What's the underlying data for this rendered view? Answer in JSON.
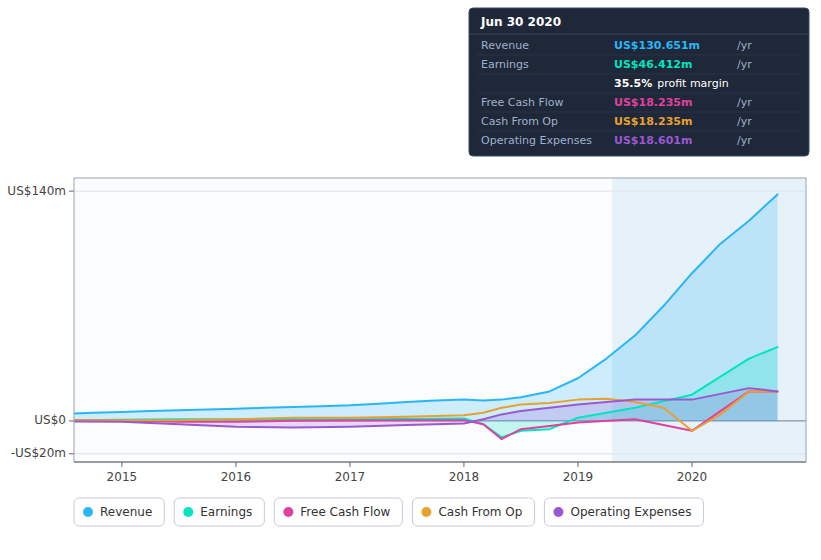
{
  "chart_data": {
    "type": "line",
    "xlim": [
      2014.58,
      2021.0
    ],
    "xticks": [
      2015,
      2016,
      2017,
      2018,
      2019,
      2020
    ],
    "ylim": [
      -25,
      148
    ],
    "yticks": [
      {
        "value": -20,
        "label": "-US$20m"
      },
      {
        "value": 0,
        "label": "US$0"
      },
      {
        "value": 140,
        "label": "US$140m"
      }
    ],
    "grid": true,
    "legend": "bottom",
    "highlight_x": [
      2019.3,
      2021.0
    ],
    "series": [
      {
        "name": "Revenue",
        "type": "area",
        "color": "#29b6f6",
        "x": [
          2014.58,
          2014.75,
          2015.0,
          2015.25,
          2015.5,
          2015.75,
          2016.0,
          2016.25,
          2016.5,
          2016.75,
          2017.0,
          2017.25,
          2017.5,
          2017.75,
          2018.0,
          2018.17,
          2018.33,
          2018.5,
          2018.75,
          2019.0,
          2019.25,
          2019.5,
          2019.75,
          2020.0,
          2020.25,
          2020.5,
          2020.75
        ],
        "values": [
          4.5,
          5.0,
          5.5,
          6.0,
          6.5,
          7.0,
          7.5,
          8.0,
          8.5,
          9.0,
          9.5,
          10.5,
          11.5,
          12.5,
          13.0,
          12.5,
          13.0,
          14.5,
          18.0,
          26.0,
          38.0,
          52.0,
          70.0,
          90.0,
          108.0,
          122.0,
          138.0
        ]
      },
      {
        "name": "Earnings",
        "type": "area",
        "color": "#00e5c0",
        "x": [
          2014.58,
          2015.0,
          2015.5,
          2016.0,
          2016.5,
          2017.0,
          2017.5,
          2018.0,
          2018.17,
          2018.33,
          2018.5,
          2018.75,
          2019.0,
          2019.5,
          2020.0,
          2020.5,
          2020.75
        ],
        "values": [
          0.5,
          0.8,
          1.0,
          1.0,
          1.0,
          1.0,
          1.2,
          1.5,
          -2.0,
          -10.0,
          -6.0,
          -5.0,
          2.0,
          8.0,
          16.0,
          38.0,
          45.0
        ]
      },
      {
        "name": "Free Cash Flow",
        "type": "line",
        "color": "#e040a0",
        "x": [
          2014.58,
          2015.0,
          2015.5,
          2016.0,
          2016.5,
          2017.0,
          2017.5,
          2018.0,
          2018.17,
          2018.33,
          2018.5,
          2018.75,
          2019.0,
          2019.5,
          2020.0,
          2020.5,
          2020.75
        ],
        "values": [
          0.5,
          0.3,
          -0.5,
          -0.5,
          0.2,
          0.3,
          0.5,
          0.5,
          -2.0,
          -11.0,
          -5.0,
          -3.0,
          -1.0,
          1.0,
          -6.0,
          18.0,
          18.0
        ]
      },
      {
        "name": "Cash From Op",
        "type": "line",
        "color": "#e8a030",
        "x": [
          2014.58,
          2015.0,
          2015.5,
          2016.0,
          2016.5,
          2017.0,
          2017.5,
          2018.0,
          2018.17,
          2018.33,
          2018.5,
          2018.75,
          2019.0,
          2019.25,
          2019.5,
          2019.75,
          2020.0,
          2020.25,
          2020.5,
          2020.75
        ],
        "values": [
          0.5,
          0.5,
          0.5,
          1.0,
          2.0,
          2.0,
          2.5,
          3.5,
          5.0,
          8.0,
          10.0,
          11.0,
          13.0,
          13.5,
          11.5,
          8.0,
          -6.0,
          4.0,
          18.0,
          18.0
        ]
      },
      {
        "name": "Operating Expenses",
        "type": "area",
        "color": "#9b59d0",
        "x": [
          2014.58,
          2015.0,
          2015.5,
          2016.0,
          2016.5,
          2017.0,
          2017.5,
          2018.0,
          2018.17,
          2018.33,
          2018.5,
          2018.75,
          2019.0,
          2019.5,
          2020.0,
          2020.5,
          2020.75
        ],
        "values": [
          -0.3,
          -0.5,
          -2.0,
          -3.5,
          -4.0,
          -3.5,
          -2.5,
          -1.5,
          1.0,
          4.0,
          6.0,
          8.0,
          10.0,
          13.0,
          13.0,
          20.0,
          18.0
        ]
      }
    ],
    "annotation": {
      "title": "Jun 30 2020",
      "rows": [
        {
          "label": "Revenue",
          "value": "US$130.651m",
          "suffix": "/yr",
          "color": "#29b6f6"
        },
        {
          "label": "Earnings",
          "value": "US$46.412m",
          "suffix": "/yr",
          "color": "#00e5c0"
        },
        {
          "value": "35.5%",
          "suffix": "profit margin",
          "color": "#ffffff"
        },
        {
          "label": "Free Cash Flow",
          "value": "US$18.235m",
          "suffix": "/yr",
          "color": "#e040a0"
        },
        {
          "label": "Cash From Op",
          "value": "US$18.235m",
          "suffix": "/yr",
          "color": "#e8a030"
        },
        {
          "label": "Operating Expenses",
          "value": "US$18.601m",
          "suffix": "/yr",
          "color": "#9b59d0"
        }
      ]
    }
  }
}
